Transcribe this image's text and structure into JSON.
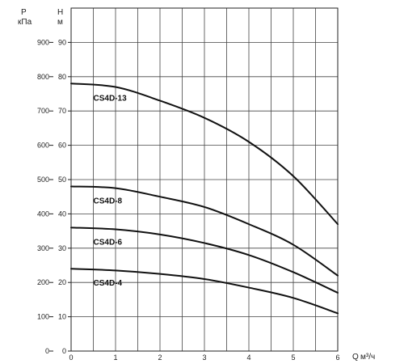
{
  "chart_data": {
    "type": "line",
    "title": "",
    "xlabel": "Q",
    "x_unit": "м³/ч",
    "ylabel_left": "P",
    "ylabel_left_unit": "кПа",
    "ylabel_right": "H",
    "ylabel_right_unit": "м",
    "xlim": [
      0,
      6
    ],
    "ylim_head_m": [
      0,
      100
    ],
    "ylim_pressure_kpa": [
      0,
      1000
    ],
    "x_ticks": [
      0,
      1,
      2,
      3,
      4,
      5,
      6
    ],
    "head_ticks_m": [
      0,
      10,
      20,
      30,
      40,
      50,
      60,
      70,
      80,
      90
    ],
    "pressure_ticks_kpa": [
      0,
      100,
      200,
      300,
      400,
      500,
      600,
      700,
      800,
      900
    ],
    "grid": true,
    "series": [
      {
        "name": "CS4D-13",
        "x": [
          0,
          1,
          2,
          3,
          4,
          5,
          6
        ],
        "values": [
          78,
          77,
          73,
          68,
          61,
          51,
          37
        ]
      },
      {
        "name": "CS4D-8",
        "x": [
          0,
          1,
          2,
          3,
          4,
          5,
          6
        ],
        "values": [
          48,
          47.5,
          45,
          42,
          37,
          31,
          22
        ]
      },
      {
        "name": "CS4D-6",
        "x": [
          0,
          1,
          2,
          3,
          4,
          5,
          6
        ],
        "values": [
          36,
          35.5,
          34,
          31.5,
          28,
          23,
          17
        ]
      },
      {
        "name": "CS4D-4",
        "x": [
          0,
          1,
          2,
          3,
          4,
          5,
          6
        ],
        "values": [
          24,
          23.5,
          22.5,
          21,
          18.5,
          15.5,
          11
        ]
      }
    ]
  }
}
